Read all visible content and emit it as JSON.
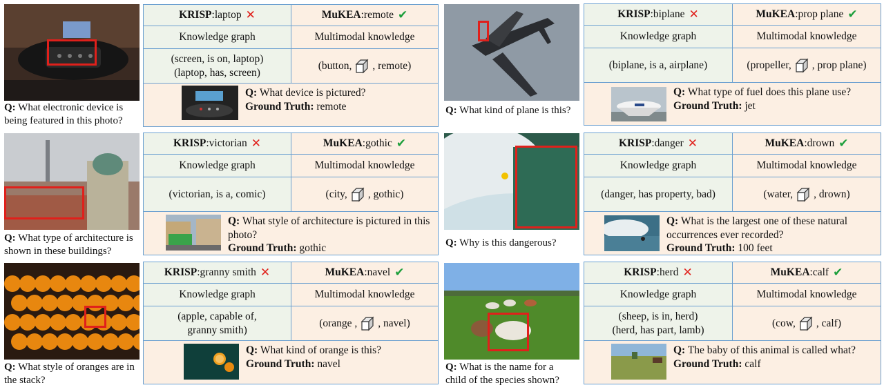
{
  "examples": [
    {
      "question_prefix": "Q:",
      "question": "What electronic device is being featured in this photo?",
      "krisp_label": "KRISP",
      "krisp_answer": "laptop",
      "mukea_label": "MuKEA",
      "mukea_answer": "remote",
      "kg_header": "Knowledge graph",
      "mm_header": "Multimodal knowledge",
      "kg_triples": [
        "(screen, is on, laptop)",
        "(laptop, has, screen)"
      ],
      "mm_head": "(button,",
      "mm_tail": ", remote)",
      "sub_q_prefix": "Q:",
      "sub_question": "What device is pictured?",
      "gt_label": "Ground Truth:",
      "gt_answer": "remote"
    },
    {
      "question_prefix": "Q:",
      "question": "What kind of plane is this?",
      "krisp_label": "KRISP",
      "krisp_answer": "biplane",
      "mukea_label": "MuKEA",
      "mukea_answer": "prop plane",
      "kg_header": "Knowledge graph",
      "mm_header": "Multimodal knowledge",
      "kg_triples": [
        "(biplane, is a, airplane)"
      ],
      "mm_head": "(propeller,",
      "mm_tail": ", prop plane)",
      "sub_q_prefix": "Q:",
      "sub_question": "What type of fuel does this plane use?",
      "gt_label": "Ground Truth:",
      "gt_answer": "jet"
    },
    {
      "question_prefix": "Q:",
      "question": "What type of architecture is shown in these buildings?",
      "krisp_label": "KRISP",
      "krisp_answer": "victorian",
      "mukea_label": "MuKEA",
      "mukea_answer": "gothic",
      "kg_header": "Knowledge graph",
      "mm_header": "Multimodal knowledge",
      "kg_triples": [
        "(victorian, is a, comic)"
      ],
      "mm_head": "(city,",
      "mm_tail": ", gothic)",
      "sub_q_prefix": "Q:",
      "sub_question": "What style of architecture is pictured in this photo?",
      "gt_label": "Ground Truth:",
      "gt_answer": "gothic"
    },
    {
      "question_prefix": "Q:",
      "question": "Why is this dangerous?",
      "krisp_label": "KRISP",
      "krisp_answer": "danger",
      "mukea_label": "MuKEA",
      "mukea_answer": "drown",
      "kg_header": "Knowledge graph",
      "mm_header": "Multimodal knowledge",
      "kg_triples": [
        "(danger, has property, bad)"
      ],
      "mm_head": "(water,",
      "mm_tail": ", drown)",
      "sub_q_prefix": "Q:",
      "sub_question": "What is the largest one of these natural occurrences ever recorded?",
      "gt_label": "Ground Truth:",
      "gt_answer": "100 feet"
    },
    {
      "question_prefix": "Q:",
      "question": "What style of oranges are in the stack?",
      "krisp_label": "KRISP",
      "krisp_answer": "granny smith",
      "mukea_label": "MuKEA",
      "mukea_answer": "navel",
      "kg_header": "Knowledge graph",
      "mm_header": "Multimodal knowledge",
      "kg_triples": [
        "(apple, capable of,",
        "granny smith)"
      ],
      "mm_head": "(orange ,",
      "mm_tail": ", navel)",
      "sub_q_prefix": "Q:",
      "sub_question": "What kind of orange is this?",
      "gt_label": "Ground Truth:",
      "gt_answer": "navel"
    },
    {
      "question_prefix": "Q:",
      "question": "What is the name for a child of the species shown?",
      "krisp_label": "KRISP",
      "krisp_answer": "herd",
      "mukea_label": "MuKEA",
      "mukea_answer": "calf",
      "kg_header": "Knowledge graph",
      "mm_header": "Multimodal knowledge",
      "kg_triples": [
        "(sheep, is in, herd)",
        "(herd, has part, lamb)"
      ],
      "mm_head": "(cow,",
      "mm_tail": ", calf)",
      "sub_q_prefix": "Q:",
      "sub_question": "The baby of this animal is called what?",
      "gt_label": "Ground Truth:",
      "gt_answer": "calf"
    }
  ],
  "colors": {
    "border": "#6a9fd0",
    "green_cell": "#eef3ea",
    "peach_cell": "#fcefe3",
    "cross": "#e0201b",
    "check": "#1a9e3a",
    "bbox": "#e0201b"
  }
}
